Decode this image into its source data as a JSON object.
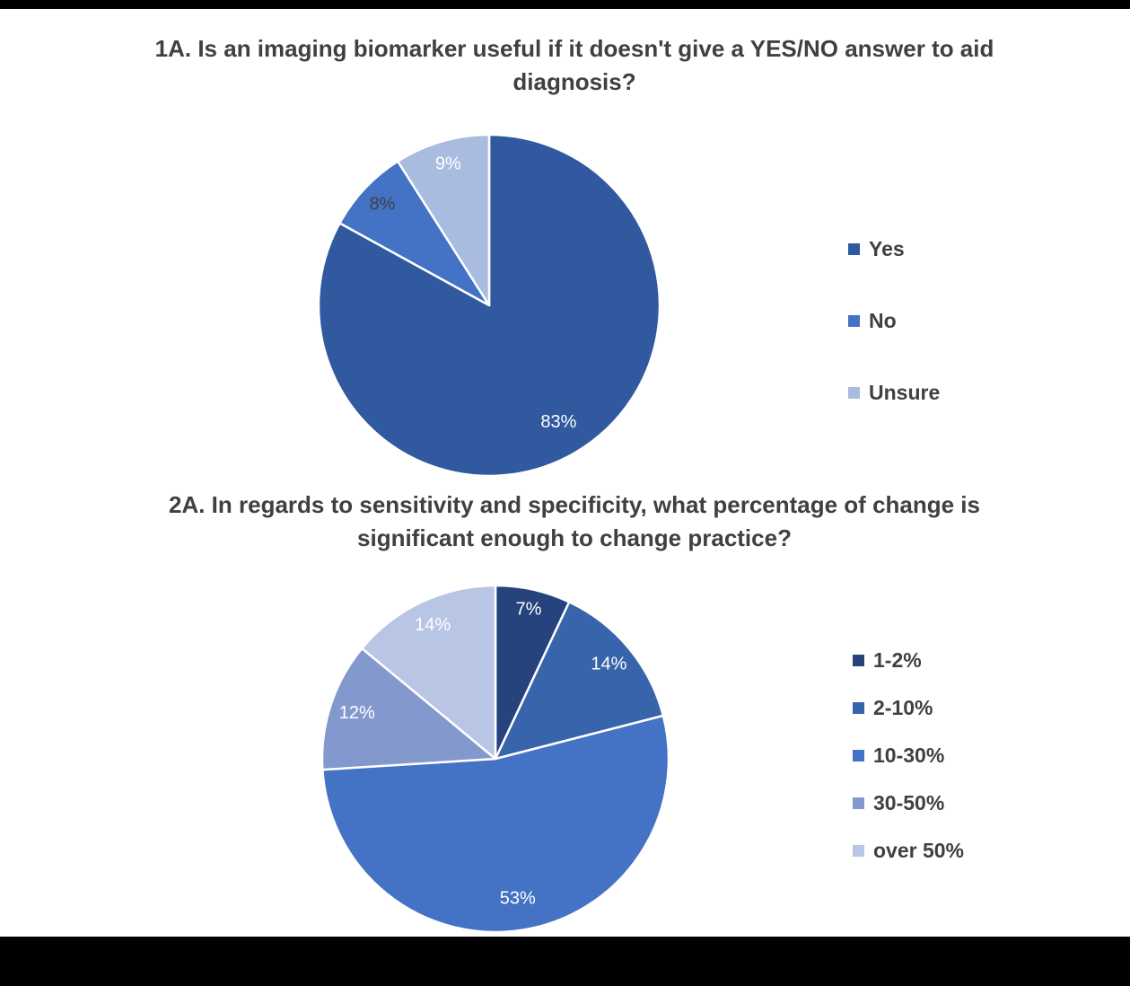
{
  "page": {
    "background_color": "#FFFFFF",
    "top_bar_color": "#000000",
    "bottom_bar_color": "#000000"
  },
  "chart_data": [
    {
      "type": "pie",
      "title": "1A. Is an imaging biomarker useful if it doesn't give a YES/NO answer to aid diagnosis?",
      "legend_position": "right",
      "start_angle_deg": 0,
      "direction": "clockwise",
      "radius": 190,
      "slices": [
        {
          "label": "Yes",
          "value": 83,
          "display": "83%",
          "color": "#30599F",
          "label_color": "#FFFFFF",
          "label_r": 0.8
        },
        {
          "label": "No",
          "value": 8,
          "display": "8%",
          "color": "#4472C4",
          "label_color": "#404040",
          "label_r": 0.86
        },
        {
          "label": "Unsure",
          "value": 9,
          "display": "9%",
          "color": "#A9BCE0",
          "label_color": "#FFFFFF",
          "label_r": 0.86
        }
      ]
    },
    {
      "type": "pie",
      "title": "2A. In regards to sensitivity and specificity, what percentage of change is significant enough to change practice?",
      "legend_position": "right",
      "start_angle_deg": 0,
      "direction": "clockwise",
      "radius": 193,
      "slices": [
        {
          "label": "1-2%",
          "value": 7,
          "display": "7%",
          "color": "#26437E",
          "label_color": "#FFFFFF",
          "label_r": 0.88
        },
        {
          "label": "2-10%",
          "value": 14,
          "display": "14%",
          "color": "#3864AC",
          "label_color": "#FFFFFF",
          "label_r": 0.85
        },
        {
          "label": "10-30%",
          "value": 53,
          "display": "53%",
          "color": "#4472C4",
          "label_color": "#FFFFFF",
          "label_r": 0.82
        },
        {
          "label": "30-50%",
          "value": 12,
          "display": "12%",
          "color": "#8399CE",
          "label_color": "#FFFFFF",
          "label_r": 0.84
        },
        {
          "label": "over 50%",
          "value": 14,
          "display": "14%",
          "color": "#B9C5E5",
          "label_color": "#FFFFFF",
          "label_r": 0.85
        }
      ]
    }
  ]
}
